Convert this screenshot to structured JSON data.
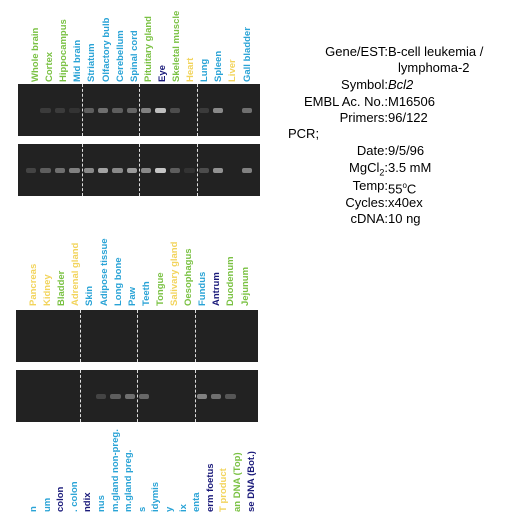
{
  "top_labels": [
    {
      "text": "Whole brain",
      "color": "#7ac143"
    },
    {
      "text": "Cortex",
      "color": "#7ac143"
    },
    {
      "text": "Hippocampus",
      "color": "#7ac143"
    },
    {
      "text": "Mid brain",
      "color": "#29a3d6"
    },
    {
      "text": "Striatum",
      "color": "#29a3d6"
    },
    {
      "text": "Olfactory bulb",
      "color": "#29a3d6"
    },
    {
      "text": "Cerebellum",
      "color": "#29a3d6"
    },
    {
      "text": "Spinal cord",
      "color": "#29a3d6"
    },
    {
      "text": "Pituitary gland",
      "color": "#7ac143"
    },
    {
      "text": "Eye",
      "color": "#1a1a7a"
    },
    {
      "text": "Skeletal muscle",
      "color": "#7ac143"
    },
    {
      "text": "Heart",
      "color": "#f2d45c"
    },
    {
      "text": "Lung",
      "color": "#29a3d6"
    },
    {
      "text": "Spleen",
      "color": "#29a3d6"
    },
    {
      "text": "Liver",
      "color": "#f2d45c"
    },
    {
      "text": "Gall bladder",
      "color": "#29a3d6"
    }
  ],
  "middle_labels": [
    {
      "text": "Pancreas",
      "color": "#f2d45c"
    },
    {
      "text": "Kidney",
      "color": "#f2d45c"
    },
    {
      "text": "Bladder",
      "color": "#7ac143"
    },
    {
      "text": "Adrenal gland",
      "color": "#f2d45c"
    },
    {
      "text": "Skin",
      "color": "#29a3d6"
    },
    {
      "text": "Adipose tissue",
      "color": "#29a3d6"
    },
    {
      "text": "Long bone",
      "color": "#29a3d6"
    },
    {
      "text": "Paw",
      "color": "#29a3d6"
    },
    {
      "text": "Teeth",
      "color": "#29a3d6"
    },
    {
      "text": "Tongue",
      "color": "#7ac143"
    },
    {
      "text": "Salivary gland",
      "color": "#f2d45c"
    },
    {
      "text": "Oesophagus",
      "color": "#7ac143"
    },
    {
      "text": "Fundus",
      "color": "#29a3d6"
    },
    {
      "text": "Antrum",
      "color": "#1a1a7a"
    },
    {
      "text": "Duodenum",
      "color": "#7ac143"
    },
    {
      "text": "Jejunum",
      "color": "#7ac143"
    }
  ],
  "bottom_labels": [
    {
      "text": "n",
      "color": "#29a3d6"
    },
    {
      "text": "um",
      "color": "#29a3d6"
    },
    {
      "text": "colon",
      "color": "#1a1a7a"
    },
    {
      "text": ". colon",
      "color": "#29a3d6"
    },
    {
      "text": "ndix",
      "color": "#1a1a7a"
    },
    {
      "text": "nus",
      "color": "#29a3d6"
    },
    {
      "text": "m.gland non-preg.",
      "color": "#29a3d6"
    },
    {
      "text": "m.gland preg.",
      "color": "#29a3d6"
    },
    {
      "text": "s",
      "color": "#29a3d6"
    },
    {
      "text": "idymis",
      "color": "#29a3d6"
    },
    {
      "text": "y",
      "color": "#29a3d6"
    },
    {
      "text": "ix",
      "color": "#29a3d6"
    },
    {
      "text": "enta",
      "color": "#29a3d6"
    },
    {
      "text": "erm foetus",
      "color": "#1a1a7a"
    },
    {
      "text": "T product",
      "color": "#f2d45c"
    },
    {
      "text": "an DNA (Top)",
      "color": "#7ac143"
    },
    {
      "text": "se DNA (Bot.)",
      "color": "#1a1a7a"
    }
  ],
  "info": {
    "gene_key": "Gene/EST:",
    "gene_val_1": "B-cell leukemia /",
    "gene_val_2": "lymphoma-2",
    "symbol_key": "Symbol:",
    "symbol_val": "Bcl2",
    "embl_key": "EMBL Ac. No.:",
    "embl_val": "M16506",
    "primers_key": "Primers:",
    "primers_val": "96/122",
    "pcr_key": "PCR;",
    "date_key": "Date:",
    "date_val": "9/5/96",
    "mgcl_key_main": "MgCl",
    "mgcl_key_sub": "2",
    "mgcl_key_colon": ":",
    "mgcl_val": "3.5 mM",
    "temp_key": "Temp:",
    "temp_val_num": "55",
    "temp_val_deg": "o",
    "temp_val_unit": "C",
    "cycles_key": "Cycles:",
    "cycles_val": "x40ex",
    "cdna_key": "cDNA:",
    "cdna_val": "10 ng"
  },
  "gels": {
    "top_row1_bands": [
      0,
      0.15,
      0.15,
      0.1,
      0.35,
      0.45,
      0.35,
      0.4,
      0.55,
      0.9,
      0.25,
      0,
      0.15,
      0.6,
      0,
      0.45
    ],
    "top_row2_bands": [
      0.2,
      0.35,
      0.45,
      0.55,
      0.6,
      0.75,
      0.6,
      0.7,
      0.6,
      0.95,
      0.35,
      0.1,
      0.25,
      0.65,
      0,
      0.55
    ],
    "mid_row1_bands": [
      0,
      0,
      0,
      0,
      0,
      0,
      0,
      0,
      0,
      0,
      0,
      0,
      0,
      0,
      0,
      0
    ],
    "mid_row2_bands": [
      0,
      0,
      0,
      0,
      0,
      0.2,
      0.35,
      0.45,
      0.4,
      0,
      0,
      0,
      0.55,
      0.45,
      0.3,
      0
    ]
  }
}
